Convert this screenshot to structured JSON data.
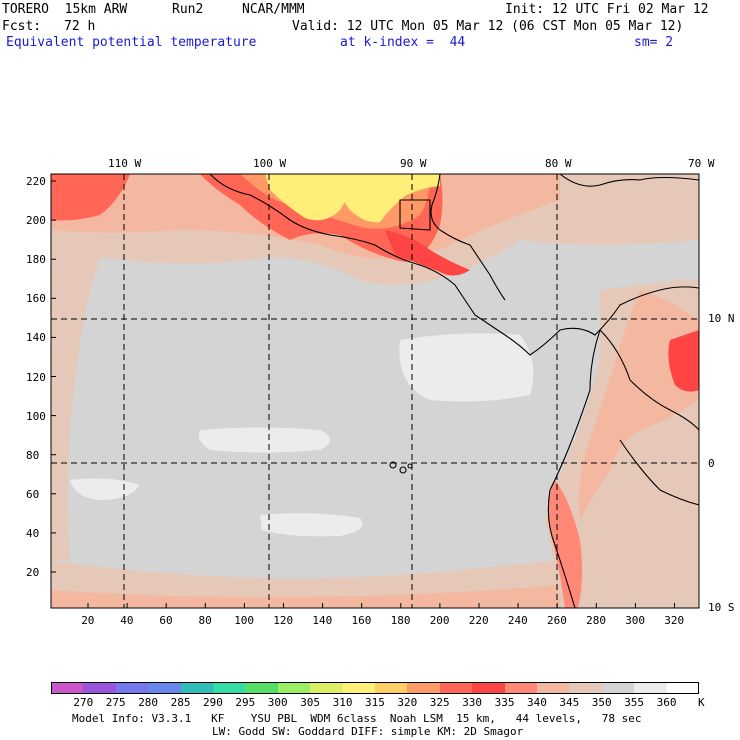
{
  "header": {
    "model": "TORERO  15km ARW",
    "run": "Run2",
    "center": "NCAR/MMM",
    "init": "Init: 12 UTC Fri 02 Mar 12",
    "fcst_label": "Fcst:",
    "fcst_value": "72 h",
    "valid": "Valid: 12 UTC Mon 05 Mar 12 (06 CST Mon 05 Mar 12)",
    "field": "Equivalent potential temperature",
    "level": "at k-index =  44",
    "smooth": "sm= 2"
  },
  "map": {
    "lon_labels": [
      "110 W",
      "100 W",
      "90 W",
      "80 W",
      "70 W"
    ],
    "lat_labels": [
      "10 N",
      "0",
      "10 S"
    ],
    "y_ticks": [
      "220",
      "200",
      "180",
      "160",
      "140",
      "120",
      "100",
      "80",
      "60",
      "40",
      "20"
    ],
    "x_ticks": [
      "20",
      "40",
      "60",
      "80",
      "100",
      "120",
      "140",
      "160",
      "180",
      "200",
      "220",
      "240",
      "260",
      "280",
      "300",
      "320"
    ]
  },
  "colorbar": {
    "unit": "K",
    "values": [
      "270",
      "275",
      "280",
      "285",
      "290",
      "295",
      "300",
      "305",
      "310",
      "315",
      "320",
      "325",
      "330",
      "335",
      "340",
      "345",
      "350",
      "355",
      "360"
    ],
    "colors": [
      "#cc55cc",
      "#9955dd",
      "#7777ee",
      "#6688ee",
      "#33bbbb",
      "#33ddaa",
      "#55dd66",
      "#99ee66",
      "#ddee66",
      "#ffee77",
      "#ffcc66",
      "#ff9966",
      "#ff6655",
      "#ff4444",
      "#ff8877",
      "#f4b8a0",
      "#e6c8b8",
      "#d4d4d4",
      "#ececec",
      "#ffffff"
    ]
  },
  "footer": {
    "line1": "Model Info: V3.3.1   KF    YSU PBL  WDM 6class  Noah LSM  15 km,   44 levels,   78 sec",
    "line2": "LW: Godd SW: Goddard DIFF: simple KM: 2D Smagor"
  }
}
